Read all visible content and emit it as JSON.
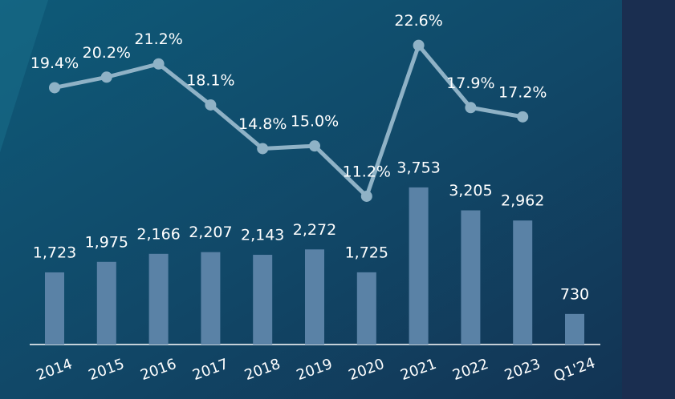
{
  "chart_data": {
    "type": "bar-line",
    "categories": [
      "2014",
      "2015",
      "2016",
      "2017",
      "2018",
      "2019",
      "2020",
      "2021",
      "2022",
      "2023",
      "Q1'24"
    ],
    "series": [
      {
        "type": "bar",
        "color": "#5a82a6",
        "values": [
          1723,
          1975,
          2166,
          2207,
          2143,
          2272,
          1725,
          3753,
          3205,
          2962,
          730
        ],
        "value_labels": [
          "1,723",
          "1,975",
          "2,166",
          "2,207",
          "2,143",
          "2,272",
          "1,725",
          "3,753",
          "3,205",
          "2,962",
          "730"
        ]
      },
      {
        "type": "line",
        "axis": "y2",
        "color": "#8fb2c6",
        "values": [
          19.4,
          20.2,
          21.2,
          18.1,
          14.8,
          15.0,
          11.2,
          22.6,
          17.9,
          17.2,
          null
        ],
        "value_labels": [
          "19.4%",
          "20.2%",
          "21.2%",
          "18.1%",
          "14.8%",
          "15.0%",
          "11.2%",
          "22.6%",
          "17.9%",
          "17.2%",
          null
        ]
      }
    ],
    "ylim": [
      0,
      8000
    ],
    "y2lim": [
      0,
      25.3
    ]
  }
}
